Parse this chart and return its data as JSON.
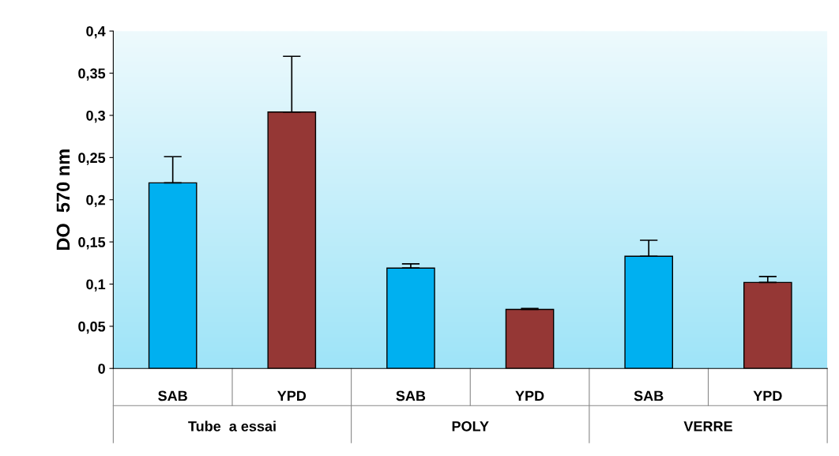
{
  "chart_data": {
    "type": "bar",
    "ylabel": "DO  570 nm",
    "categories": [
      "SAB",
      "YPD",
      "SAB",
      "YPD",
      "SAB",
      "YPD"
    ],
    "values": [
      0.22,
      0.304,
      0.119,
      0.07,
      0.133,
      0.102
    ],
    "colors": [
      "#00b0f0",
      "#953735",
      "#00b0f0",
      "#953735",
      "#00b0f0",
      "#953735"
    ],
    "errors": [
      [
        0.22,
        0.251
      ],
      [
        0.304,
        0.37
      ],
      [
        0.119,
        0.124
      ],
      [
        0.07,
        0.071
      ],
      [
        0.133,
        0.152
      ],
      [
        0.102,
        0.109
      ]
    ],
    "annotations": [
      "Tube  a essai",
      "POLY",
      "VERRE"
    ],
    "ylim": [
      0,
      0.4
    ],
    "yticks": [
      0,
      {
        "value": 0.05,
        "label": "0,05"
      },
      {
        "value": 0.1,
        "label": "0,1"
      },
      {
        "value": 0.15,
        "label": "0,15"
      },
      {
        "value": 0.2,
        "label": "0,2"
      },
      {
        "value": 0.25,
        "label": "0,25"
      },
      {
        "value": 0.3,
        "label": "0,3"
      },
      {
        "value": 0.35,
        "label": "0,35"
      },
      {
        "value": 0.4,
        "label": "0,4"
      }
    ]
  }
}
